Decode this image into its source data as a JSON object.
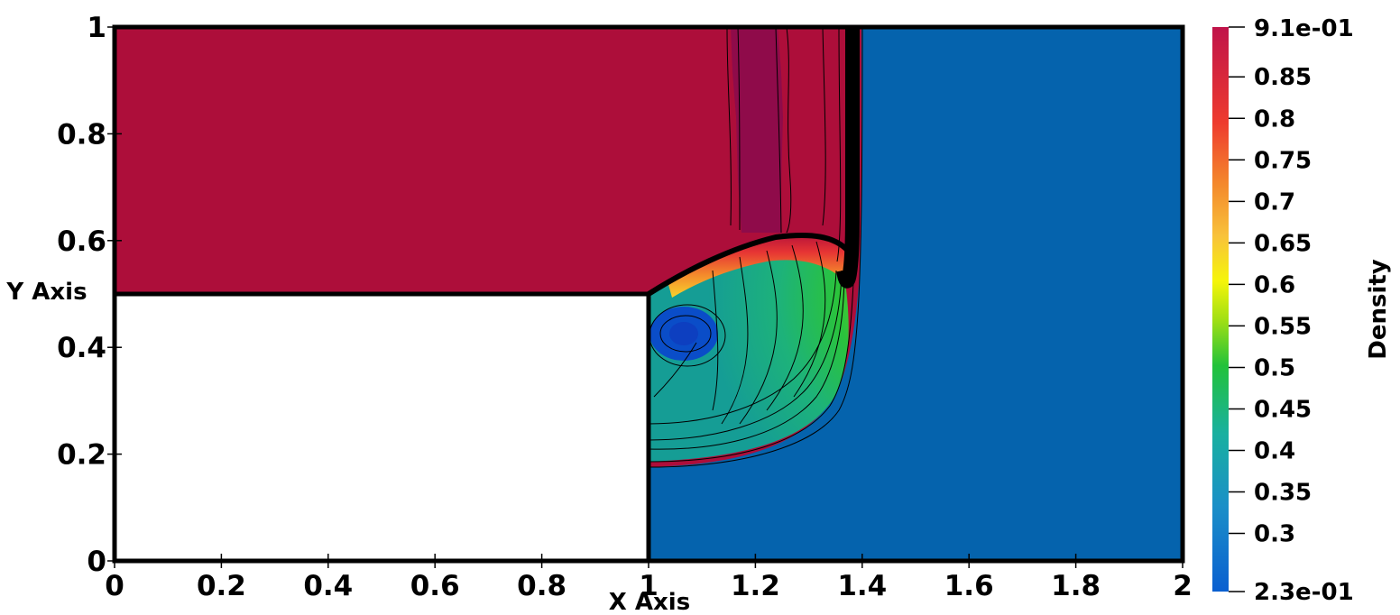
{
  "chart_data": {
    "type": "heatmap",
    "title": "",
    "xlabel": "X Axis",
    "ylabel": "Y Axis",
    "xlim": [
      0,
      2
    ],
    "ylim": [
      0,
      1
    ],
    "x_ticks": [
      "0",
      "0.2",
      "0.4",
      "0.6",
      "0.8",
      "1",
      "1.2",
      "1.4",
      "1.6",
      "1.8",
      "2"
    ],
    "y_ticks": [
      "0",
      "0.2",
      "0.4",
      "0.6",
      "0.8",
      "1"
    ],
    "colorbar": {
      "title": "Density",
      "range": [
        0.23,
        0.91
      ],
      "min_label": "2.3e-01",
      "max_label": "9.1e-01",
      "tick_values": [
        0.3,
        0.35,
        0.4,
        0.45,
        0.5,
        0.55,
        0.6,
        0.65,
        0.7,
        0.75,
        0.8,
        0.85
      ],
      "tick_labels": [
        "0.3",
        "0.35",
        "0.4",
        "0.45",
        "0.5",
        "0.55",
        "0.6",
        "0.65",
        "0.7",
        "0.75",
        "0.8",
        "0.85"
      ],
      "colormap": [
        "#3b4cc0",
        "#0a5fd0",
        "#1a8fc8",
        "#19b0a0",
        "#22c23a",
        "#9fdf14",
        "#f5f50a",
        "#f8c23a",
        "#f48a2c",
        "#ee3b2e",
        "#c0134a"
      ]
    },
    "regions": {
      "upstream_density": 0.88,
      "downstream_density": 0.29,
      "obstacle": {
        "x": [
          0,
          1
        ],
        "y": [
          0,
          0.5
        ]
      },
      "shock_x": 1.39,
      "vortex_center": {
        "x": 1.07,
        "y": 0.42,
        "density": 0.26
      },
      "contact_band_x": [
        1.15,
        1.25
      ]
    },
    "colors": {
      "upstream": "#ad0e3a",
      "contact_band": "#8f0b4a",
      "downstream": "#0563ad",
      "vortex": "#0a4dc8",
      "contour": "#000000"
    }
  }
}
